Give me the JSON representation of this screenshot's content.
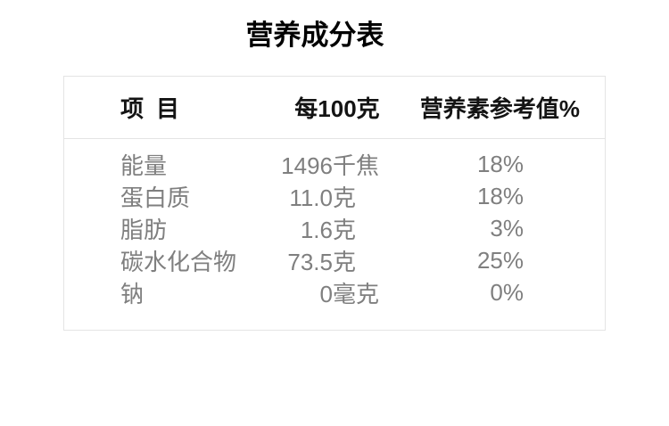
{
  "title": "营养成分表",
  "table": {
    "border_color": "#e4e4e4",
    "header_text_color": "#141414",
    "body_text_color": "#7f7f7f",
    "header": {
      "item_label": "项目",
      "per_100g_label": "每100克",
      "nrv_label": "营养素参考值%"
    },
    "rows": [
      {
        "name": "能量",
        "value": "1496",
        "unit": "千焦",
        "nrv": "18%"
      },
      {
        "name": "蛋白质",
        "value": "11.0",
        "unit": "克",
        "nrv": "18%"
      },
      {
        "name": "脂肪",
        "value": "1.6",
        "unit": "克",
        "nrv": "3%"
      },
      {
        "name": "碳水化合物",
        "value": "73.5",
        "unit": "克",
        "nrv": "25%"
      },
      {
        "name": "钠",
        "value": "0",
        "unit": "毫克",
        "nrv": "0%"
      }
    ]
  },
  "chart_data": {
    "type": "table",
    "title": "营养成分表",
    "columns": [
      "项目",
      "每100克",
      "营养素参考值%"
    ],
    "rows": [
      [
        "能量",
        "1496千焦",
        "18%"
      ],
      [
        "蛋白质",
        "11.0克",
        "18%"
      ],
      [
        "脂肪",
        "1.6克",
        "3%"
      ],
      [
        "碳水化合物",
        "73.5克",
        "25%"
      ],
      [
        "钠",
        "0毫克",
        "0%"
      ]
    ],
    "nrv_values_numeric_percent": [
      18,
      18,
      3,
      25,
      0
    ],
    "per_100g_values_numeric": [
      1496,
      11.0,
      1.6,
      73.5,
      0
    ]
  }
}
